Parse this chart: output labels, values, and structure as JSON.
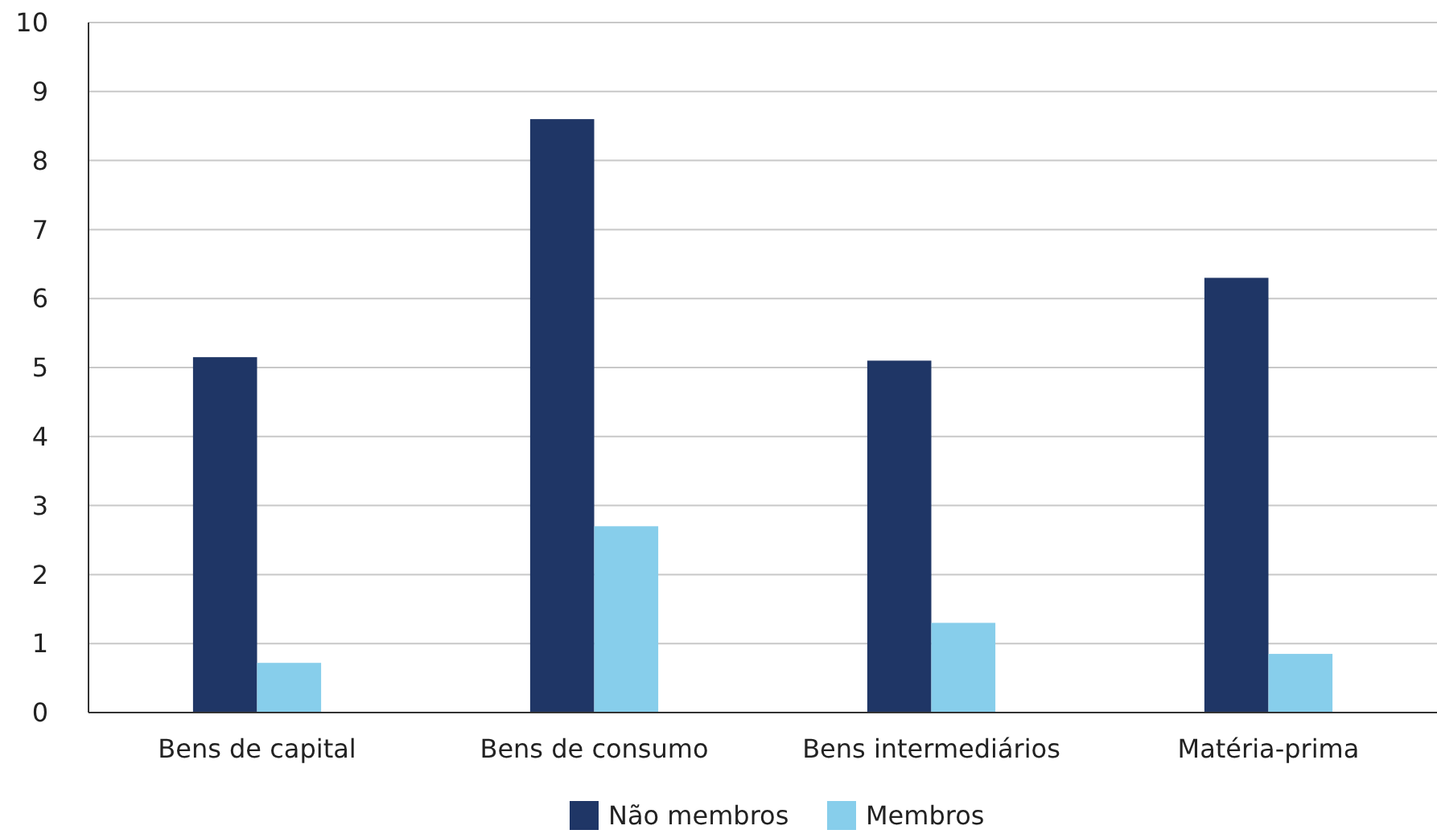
{
  "chart_data": {
    "type": "bar",
    "categories": [
      "Bens de capital",
      "Bens de consumo",
      "Bens intermediários",
      "Matéria-prima"
    ],
    "series": [
      {
        "name": "Não membros",
        "color": "#1f3666",
        "values": [
          5.15,
          8.6,
          5.1,
          6.3
        ]
      },
      {
        "name": "Membros",
        "color": "#87ceeb",
        "values": [
          0.72,
          2.7,
          1.3,
          0.85
        ]
      }
    ],
    "ylim": [
      0,
      10
    ],
    "yticks": [
      0,
      1,
      2,
      3,
      4,
      5,
      6,
      7,
      8,
      9,
      10
    ],
    "grid": "y",
    "legend": "bottom"
  }
}
